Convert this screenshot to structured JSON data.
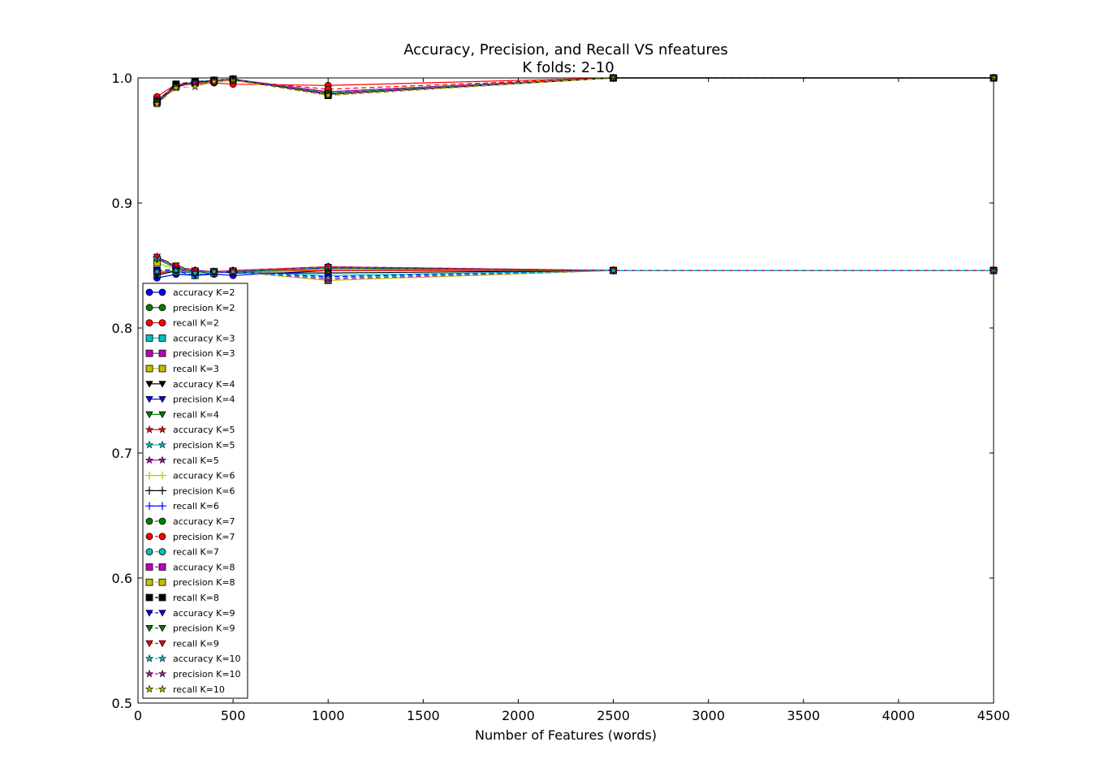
{
  "chart_data": {
    "type": "line",
    "title": "Accuracy, Precision, and Recall VS nfeatures",
    "subtitle": "K folds: 2-10",
    "xlabel": "Number of Features (words)",
    "ylabel": "",
    "xlim": [
      0,
      4500
    ],
    "ylim": [
      0.5,
      1.0
    ],
    "xticks": [
      0,
      500,
      1000,
      1500,
      2000,
      2500,
      3000,
      3500,
      4000,
      4500
    ],
    "yticks": [
      0.5,
      0.6,
      0.7,
      0.8,
      0.9,
      1.0
    ],
    "ytick_labels": [
      "0.5",
      "0.6",
      "0.7",
      "0.8",
      "0.9",
      "1.0"
    ],
    "grid": false,
    "legend_position": "lower-left",
    "x": [
      100,
      200,
      300,
      400,
      500,
      1000,
      2500,
      4500
    ],
    "series": [
      {
        "name": "accuracy K=2",
        "color": "#0000ff",
        "marker": "circle",
        "dash": "solid",
        "values": [
          0.84,
          0.843,
          0.842,
          0.843,
          0.842,
          0.846,
          0.846,
          0.846
        ]
      },
      {
        "name": "precision K=2",
        "color": "#008000",
        "marker": "circle",
        "dash": "solid",
        "values": [
          0.982,
          0.994,
          0.996,
          0.997,
          0.998,
          0.989,
          1.0,
          1.0
        ]
      },
      {
        "name": "recall K=2",
        "color": "#ff0000",
        "marker": "circle",
        "dash": "solid",
        "values": [
          0.985,
          0.995,
          0.995,
          0.996,
          0.995,
          0.994,
          1.0,
          1.0
        ]
      },
      {
        "name": "accuracy K=3",
        "color": "#00bfbf",
        "marker": "square",
        "dash": "solid",
        "values": [
          0.843,
          0.845,
          0.842,
          0.845,
          0.845,
          0.842,
          0.846,
          0.846
        ]
      },
      {
        "name": "precision K=3",
        "color": "#bf00bf",
        "marker": "square",
        "dash": "solid",
        "values": [
          0.982,
          0.994,
          0.997,
          0.998,
          0.999,
          0.989,
          1.0,
          1.0
        ]
      },
      {
        "name": "recall K=3",
        "color": "#bfbf00",
        "marker": "square",
        "dash": "solid",
        "values": [
          0.852,
          0.847,
          0.845,
          0.844,
          0.845,
          0.838,
          0.846,
          0.846
        ]
      },
      {
        "name": "accuracy K=4",
        "color": "#000000",
        "marker": "tri_down",
        "dash": "solid",
        "values": [
          0.842,
          0.846,
          0.844,
          0.845,
          0.844,
          0.844,
          0.846,
          0.846
        ]
      },
      {
        "name": "precision K=4",
        "color": "#0000ff",
        "marker": "tri_down",
        "dash": "solid",
        "values": [
          0.981,
          0.993,
          0.996,
          0.998,
          0.999,
          0.987,
          1.0,
          1.0
        ]
      },
      {
        "name": "recall K=4",
        "color": "#008000",
        "marker": "tri_down",
        "dash": "solid",
        "values": [
          0.855,
          0.848,
          0.845,
          0.845,
          0.845,
          0.848,
          0.846,
          0.846
        ]
      },
      {
        "name": "accuracy K=5",
        "color": "#ff0000",
        "marker": "star",
        "dash": "solid",
        "values": [
          0.844,
          0.846,
          0.845,
          0.845,
          0.845,
          0.846,
          0.846,
          0.846
        ]
      },
      {
        "name": "precision K=5",
        "color": "#00bfbf",
        "marker": "star",
        "dash": "solid",
        "values": [
          0.981,
          0.993,
          0.997,
          0.998,
          0.999,
          0.988,
          1.0,
          1.0
        ]
      },
      {
        "name": "recall K=5",
        "color": "#bf00bf",
        "marker": "star",
        "dash": "solid",
        "values": [
          0.856,
          0.849,
          0.846,
          0.845,
          0.846,
          0.849,
          0.846,
          0.846
        ]
      },
      {
        "name": "accuracy K=6",
        "color": "#bfbf00",
        "marker": "plus",
        "dash": "solid",
        "values": [
          0.845,
          0.846,
          0.845,
          0.845,
          0.845,
          0.847,
          0.846,
          0.846
        ]
      },
      {
        "name": "precision K=6",
        "color": "#000000",
        "marker": "plus",
        "dash": "solid",
        "values": [
          0.98,
          0.993,
          0.996,
          0.998,
          0.999,
          0.987,
          1.0,
          1.0
        ]
      },
      {
        "name": "recall K=6",
        "color": "#0000ff",
        "marker": "plus",
        "dash": "solid",
        "values": [
          0.857,
          0.849,
          0.846,
          0.845,
          0.845,
          0.848,
          0.846,
          0.846
        ]
      },
      {
        "name": "accuracy K=7",
        "color": "#008000",
        "marker": "circle",
        "dash": "dashed",
        "values": [
          0.845,
          0.846,
          0.845,
          0.845,
          0.845,
          0.848,
          0.846,
          0.846
        ]
      },
      {
        "name": "precision K=7",
        "color": "#ff0000",
        "marker": "circle",
        "dash": "dashed",
        "values": [
          0.981,
          0.994,
          0.996,
          0.997,
          0.998,
          0.991,
          1.0,
          1.0
        ]
      },
      {
        "name": "recall K=7",
        "color": "#00bfbf",
        "marker": "circle",
        "dash": "dashed",
        "values": [
          0.856,
          0.849,
          0.846,
          0.845,
          0.846,
          0.849,
          0.846,
          0.846
        ]
      },
      {
        "name": "accuracy K=8",
        "color": "#bf00bf",
        "marker": "square",
        "dash": "dashed",
        "values": [
          0.846,
          0.847,
          0.845,
          0.845,
          0.845,
          0.839,
          0.846,
          0.846
        ]
      },
      {
        "name": "precision K=8",
        "color": "#bfbf00",
        "marker": "square",
        "dash": "dashed",
        "values": [
          0.98,
          0.993,
          0.996,
          0.998,
          0.999,
          0.987,
          1.0,
          1.0
        ]
      },
      {
        "name": "recall K=8",
        "color": "#000000",
        "marker": "square",
        "dash": "dashed",
        "values": [
          0.981,
          0.995,
          0.997,
          0.998,
          0.999,
          0.986,
          1.0,
          1.0
        ]
      },
      {
        "name": "accuracy K=9",
        "color": "#0000ff",
        "marker": "tri_down",
        "dash": "dashed",
        "values": [
          0.846,
          0.846,
          0.842,
          0.844,
          0.845,
          0.841,
          0.846,
          0.846
        ]
      },
      {
        "name": "precision K=9",
        "color": "#008000",
        "marker": "tri_down",
        "dash": "dashed",
        "values": [
          0.981,
          0.993,
          0.996,
          0.998,
          0.999,
          0.988,
          1.0,
          1.0
        ]
      },
      {
        "name": "recall K=9",
        "color": "#ff0000",
        "marker": "tri_down",
        "dash": "dashed",
        "values": [
          0.857,
          0.85,
          0.846,
          0.845,
          0.846,
          0.849,
          0.846,
          0.846
        ]
      },
      {
        "name": "accuracy K=10",
        "color": "#00bfbf",
        "marker": "star",
        "dash": "dashed",
        "values": [
          0.845,
          0.846,
          0.844,
          0.845,
          0.845,
          0.84,
          0.846,
          0.846
        ]
      },
      {
        "name": "precision K=10",
        "color": "#bf00bf",
        "marker": "star",
        "dash": "dashed",
        "values": [
          0.98,
          0.993,
          0.996,
          0.998,
          0.999,
          0.987,
          1.0,
          1.0
        ]
      },
      {
        "name": "recall K=10",
        "color": "#bfbf00",
        "marker": "star",
        "dash": "dashed",
        "values": [
          0.979,
          0.992,
          0.993,
          0.997,
          0.998,
          0.986,
          1.0,
          1.0
        ]
      }
    ]
  }
}
